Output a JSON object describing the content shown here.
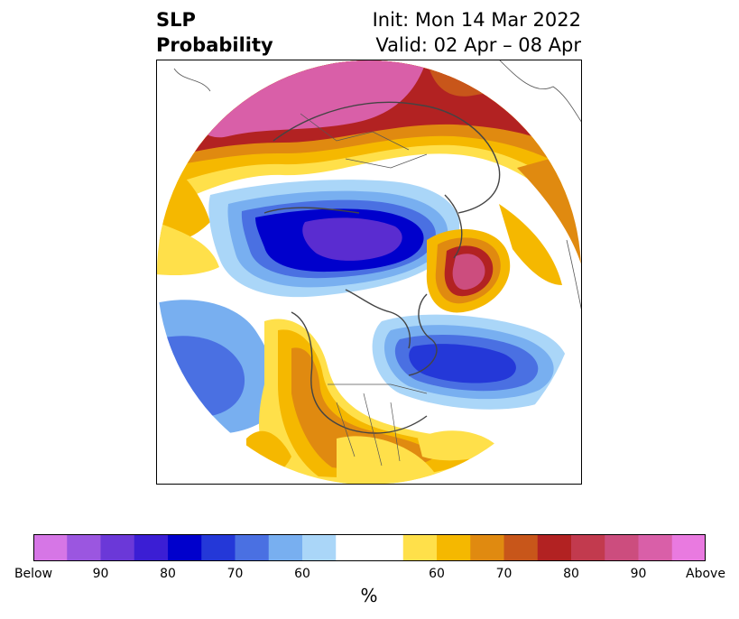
{
  "title": {
    "variable": "SLP",
    "subtitle": "Probability",
    "init": "Init: Mon 14 Mar 2022",
    "valid": "Valid: 02 Apr – 08 Apr"
  },
  "colorbar": {
    "colors": [
      "#d676e6",
      "#9b56e0",
      "#6b38d8",
      "#3b1ed4",
      "#0000cc",
      "#2438d8",
      "#4a70e2",
      "#78aff0",
      "#aad6f8",
      "#ffffff",
      "#ffffff",
      "#ffe04a",
      "#f5b800",
      "#e08a10",
      "#c8561a",
      "#b22222",
      "#c23a4e",
      "#cc4d7e",
      "#d95fa8",
      "#e97ae0"
    ],
    "tick_labels": [
      "Below",
      "90",
      "80",
      "70",
      "60",
      "60",
      "70",
      "80",
      "90",
      "Above"
    ],
    "unit": "%"
  },
  "colors": {
    "strong_blue": "#0000cc",
    "purple": "#5a2cd0",
    "light_blue": "#aad6f8",
    "yellow": "#ffe04a",
    "orange": "#e08a10",
    "red": "#b22222",
    "pink": "#d95fa8"
  }
}
